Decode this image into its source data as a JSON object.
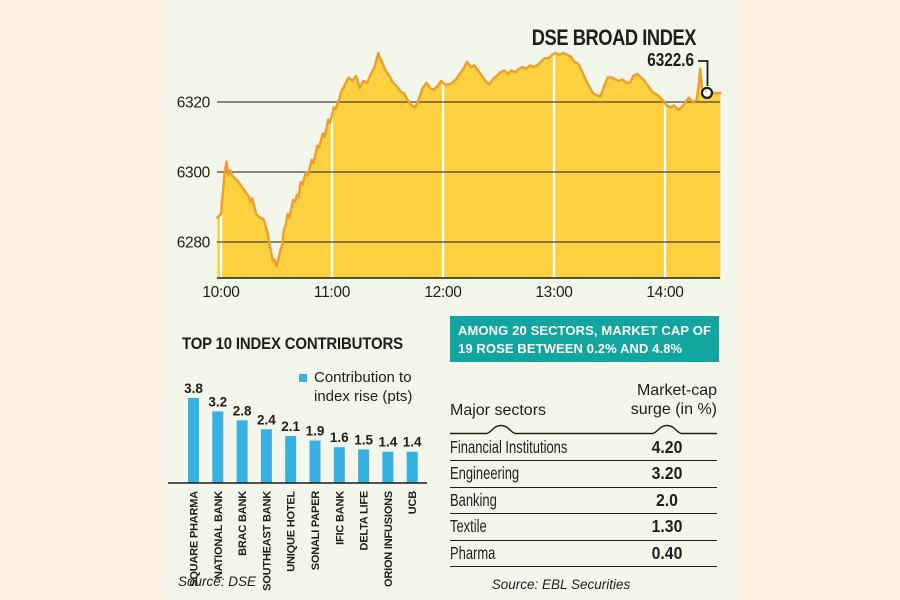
{
  "colors": {
    "margin_bg": "#fdf2e3",
    "panel_bg": "#f3f6eb",
    "area_fill": "#fbd13f",
    "area_stroke": "#ef9d2d",
    "bar_blue": "#36b1e2",
    "banner_teal": "#12a5a0",
    "ink": "#1e1e1c",
    "grid": "#45453d",
    "white_grid": "#ffffff"
  },
  "chart_data": [
    {
      "type": "area",
      "title": "DSE BROAD INDEX",
      "end_label": "6322.6",
      "end_value": 6322.6,
      "y_ticks": [
        6320,
        6300,
        6280
      ],
      "x_ticks": [
        "10:00",
        "11:00",
        "12:00",
        "13:00",
        "14:00"
      ],
      "x_unit": "minutes since 10:00",
      "ylim": [
        6269,
        6336
      ],
      "series": [
        [
          -2,
          6287
        ],
        [
          0,
          6288
        ],
        [
          1,
          6294
        ],
        [
          2,
          6300
        ],
        [
          3,
          6303
        ],
        [
          4,
          6299
        ],
        [
          5,
          6300.5
        ],
        [
          6,
          6299
        ],
        [
          7,
          6298.5
        ],
        [
          9,
          6297.5
        ],
        [
          11,
          6296
        ],
        [
          13,
          6294.5
        ],
        [
          15,
          6293
        ],
        [
          16,
          6291.5
        ],
        [
          17,
          6292.5
        ],
        [
          19,
          6288
        ],
        [
          21,
          6287
        ],
        [
          23,
          6286.5
        ],
        [
          25,
          6283
        ],
        [
          26,
          6280
        ],
        [
          27,
          6277.5
        ],
        [
          28,
          6274.5
        ],
        [
          29,
          6275
        ],
        [
          30,
          6273
        ],
        [
          31,
          6275
        ],
        [
          32,
          6277.5
        ],
        [
          33,
          6279
        ],
        [
          34,
          6283.5
        ],
        [
          35,
          6285
        ],
        [
          36,
          6288
        ],
        [
          37,
          6287
        ],
        [
          39,
          6292
        ],
        [
          40,
          6291.5
        ],
        [
          41,
          6293.5
        ],
        [
          42,
          6293
        ],
        [
          43,
          6297
        ],
        [
          44,
          6296.5
        ],
        [
          46,
          6300
        ],
        [
          47,
          6299
        ],
        [
          49,
          6303.5
        ],
        [
          50,
          6302.5
        ],
        [
          52,
          6307.5
        ],
        [
          53,
          6307
        ],
        [
          55,
          6311
        ],
        [
          56,
          6310
        ],
        [
          58,
          6315
        ],
        [
          59,
          6314
        ],
        [
          61,
          6318.5
        ],
        [
          62,
          6318
        ],
        [
          64,
          6321
        ],
        [
          65,
          6323
        ],
        [
          67,
          6325
        ],
        [
          69,
          6327
        ],
        [
          71,
          6326
        ],
        [
          73,
          6327.5
        ],
        [
          75,
          6324
        ],
        [
          77,
          6326
        ],
        [
          79,
          6325.5
        ],
        [
          81,
          6328
        ],
        [
          83,
          6330
        ],
        [
          85,
          6334
        ],
        [
          86,
          6332.5
        ],
        [
          87,
          6331.5
        ],
        [
          89,
          6329
        ],
        [
          91,
          6327.5
        ],
        [
          93,
          6325.5
        ],
        [
          95,
          6324.5
        ],
        [
          97,
          6323
        ],
        [
          99,
          6322.5
        ],
        [
          101,
          6320.5
        ],
        [
          103,
          6319
        ],
        [
          105,
          6318.5
        ],
        [
          107,
          6321
        ],
        [
          109,
          6324
        ],
        [
          111,
          6325.5
        ],
        [
          113,
          6324
        ],
        [
          115,
          6323.5
        ],
        [
          117,
          6324.5
        ],
        [
          119,
          6326
        ],
        [
          121,
          6325
        ],
        [
          123,
          6325
        ],
        [
          125,
          6325.5
        ],
        [
          127,
          6326.5
        ],
        [
          129,
          6328
        ],
        [
          131,
          6329.5
        ],
        [
          133,
          6331.5
        ],
        [
          135,
          6330
        ],
        [
          137,
          6330.5
        ],
        [
          139,
          6329
        ],
        [
          141,
          6327.5
        ],
        [
          143,
          6326
        ],
        [
          145,
          6325
        ],
        [
          147,
          6326.5
        ],
        [
          149,
          6327.5
        ],
        [
          151,
          6328.5
        ],
        [
          153,
          6329
        ],
        [
          155,
          6328
        ],
        [
          157,
          6329
        ],
        [
          159,
          6328.5
        ],
        [
          161,
          6329.5
        ],
        [
          163,
          6330
        ],
        [
          165,
          6329.5
        ],
        [
          167,
          6330.5
        ],
        [
          169,
          6330
        ],
        [
          171,
          6330.5
        ],
        [
          173,
          6331.5
        ],
        [
          175,
          6332.5
        ],
        [
          177,
          6332.5
        ],
        [
          179,
          6333.5
        ],
        [
          181,
          6334
        ],
        [
          183,
          6333.5
        ],
        [
          185,
          6334
        ],
        [
          187,
          6333.5
        ],
        [
          189,
          6333
        ],
        [
          191,
          6331.5
        ],
        [
          193,
          6331
        ],
        [
          195,
          6329
        ],
        [
          197,
          6326.5
        ],
        [
          199,
          6324.5
        ],
        [
          201,
          6322.5
        ],
        [
          203,
          6322
        ],
        [
          205,
          6321.5
        ],
        [
          207,
          6324.5
        ],
        [
          209,
          6327
        ],
        [
          211,
          6327
        ],
        [
          213,
          6326.5
        ],
        [
          215,
          6326
        ],
        [
          217,
          6326.5
        ],
        [
          219,
          6325.5
        ],
        [
          221,
          6325.5
        ],
        [
          223,
          6327.5
        ],
        [
          225,
          6328
        ],
        [
          227,
          6327
        ],
        [
          229,
          6326
        ],
        [
          231,
          6324.5
        ],
        [
          233,
          6323
        ],
        [
          235,
          6322.3
        ],
        [
          237,
          6321.5
        ],
        [
          239,
          6320.3
        ],
        [
          241,
          6319
        ],
        [
          243,
          6318.5
        ],
        [
          245,
          6319
        ],
        [
          247,
          6317.8
        ],
        [
          249,
          6318.5
        ],
        [
          251,
          6320
        ],
        [
          253,
          6321.2
        ],
        [
          255,
          6320
        ],
        [
          257,
          6320.5
        ],
        [
          258,
          6324
        ],
        [
          259,
          6329.5
        ],
        [
          260,
          6324
        ],
        [
          261,
          6322.5
        ],
        [
          262,
          6322.6
        ],
        [
          270,
          6322.6
        ]
      ]
    },
    {
      "type": "bar",
      "title": "TOP 10 INDEX CONTRIBUTORS",
      "legend_lines": [
        "Contribution to",
        "index rise (pts)"
      ],
      "categories": [
        "SQUARE PHARMA",
        "NATIONAL BANK",
        "BRAC BANK",
        "SOUTHEAST BANK",
        "UNIQUE HOTEL",
        "SONALI PAPER",
        "IFIC BANK",
        "DELTA LIFE",
        "ORION INFUSIONS",
        "UCB"
      ],
      "values": [
        3.8,
        3.2,
        2.8,
        2.4,
        2.1,
        1.9,
        1.6,
        1.5,
        1.4,
        1.4
      ],
      "source": "Source: DSE"
    },
    {
      "type": "table",
      "banner": "AMONG 20 SECTORS, MARKET CAP OF 19 ROSE BETWEEN 0.2% AND 4.8%",
      "headers": [
        "Major sectors",
        [
          "Market-cap",
          "surge (in %)"
        ]
      ],
      "rows": [
        [
          "Financial Institutions",
          "4.20"
        ],
        [
          "Engineering",
          "3.20"
        ],
        [
          "Banking",
          "2.0"
        ],
        [
          "Textile",
          "1.30"
        ],
        [
          "Pharma",
          "0.40"
        ]
      ],
      "source": "Source: EBL Securities"
    }
  ]
}
